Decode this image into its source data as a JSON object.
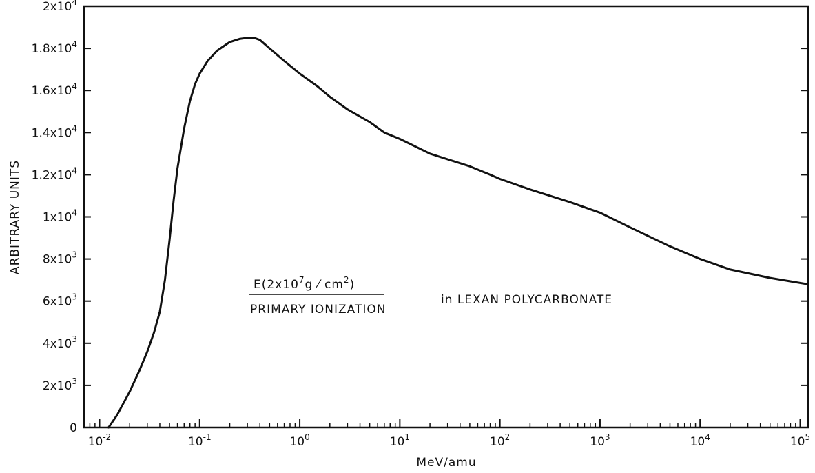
{
  "chart_data": {
    "type": "line",
    "title": "",
    "xlabel": "MeV/amu",
    "ylabel": "ARBITRARY UNITS",
    "x_scale": "log",
    "xlim": [
      0.007,
      120000
    ],
    "ylim": [
      0,
      20000
    ],
    "grid": false,
    "x_ticks": [
      {
        "value": 0.01,
        "base": "10",
        "exp": "-2"
      },
      {
        "value": 0.1,
        "base": "10",
        "exp": "-1"
      },
      {
        "value": 1,
        "base": "10",
        "exp": "0"
      },
      {
        "value": 10,
        "base": "10",
        "exp": "1"
      },
      {
        "value": 100,
        "base": "10",
        "exp": "2"
      },
      {
        "value": 1000,
        "base": "10",
        "exp": "3"
      },
      {
        "value": 10000,
        "base": "10",
        "exp": "4"
      },
      {
        "value": 100000,
        "base": "10",
        "exp": "5"
      }
    ],
    "y_ticks": [
      {
        "value": 0,
        "base": "0",
        "exp": ""
      },
      {
        "value": 2000,
        "base": "2x10",
        "exp": "3"
      },
      {
        "value": 4000,
        "base": "4x10",
        "exp": "3"
      },
      {
        "value": 6000,
        "base": "6x10",
        "exp": "3"
      },
      {
        "value": 8000,
        "base": "8x10",
        "exp": "3"
      },
      {
        "value": 10000,
        "base": "1x10",
        "exp": "4"
      },
      {
        "value": 12000,
        "base": "1.2x10",
        "exp": "4"
      },
      {
        "value": 14000,
        "base": "1.4x10",
        "exp": "4"
      },
      {
        "value": 16000,
        "base": "1.6x10",
        "exp": "4"
      },
      {
        "value": 18000,
        "base": "1.8x10",
        "exp": "4"
      },
      {
        "value": 20000,
        "base": "2x10",
        "exp": "4"
      }
    ],
    "series": [
      {
        "color": "#111111",
        "points": [
          [
            0.0123,
            0
          ],
          [
            0.015,
            600
          ],
          [
            0.02,
            1700
          ],
          [
            0.025,
            2700
          ],
          [
            0.03,
            3600
          ],
          [
            0.035,
            4500
          ],
          [
            0.04,
            5500
          ],
          [
            0.045,
            7000
          ],
          [
            0.05,
            8900
          ],
          [
            0.055,
            10800
          ],
          [
            0.06,
            12300
          ],
          [
            0.07,
            14200
          ],
          [
            0.08,
            15500
          ],
          [
            0.09,
            16300
          ],
          [
            0.1,
            16800
          ],
          [
            0.12,
            17400
          ],
          [
            0.15,
            17900
          ],
          [
            0.2,
            18300
          ],
          [
            0.25,
            18450
          ],
          [
            0.3,
            18500
          ],
          [
            0.35,
            18500
          ],
          [
            0.4,
            18400
          ],
          [
            0.5,
            18000
          ],
          [
            0.7,
            17400
          ],
          [
            1,
            16800
          ],
          [
            1.5,
            16200
          ],
          [
            2,
            15700
          ],
          [
            3,
            15100
          ],
          [
            5,
            14500
          ],
          [
            7,
            14000
          ],
          [
            10,
            13700
          ],
          [
            20,
            13000
          ],
          [
            50,
            12400
          ],
          [
            80,
            12000
          ],
          [
            100,
            11800
          ],
          [
            200,
            11300
          ],
          [
            500,
            10700
          ],
          [
            1000,
            10200
          ],
          [
            2000,
            9500
          ],
          [
            5000,
            8600
          ],
          [
            10000,
            8000
          ],
          [
            20000,
            7500
          ],
          [
            50000,
            7100
          ],
          [
            120000,
            6800
          ]
        ]
      }
    ],
    "annotation": {
      "numerator": {
        "prefix": "E(2x10",
        "exp": "7",
        "mid": "g ⁄ cm",
        "exp2": "2",
        "suffix": ")"
      },
      "denominator": "PRIMARY  IONIZATION",
      "suffix_text": "in  LEXAN  POLYCARBONATE"
    }
  }
}
